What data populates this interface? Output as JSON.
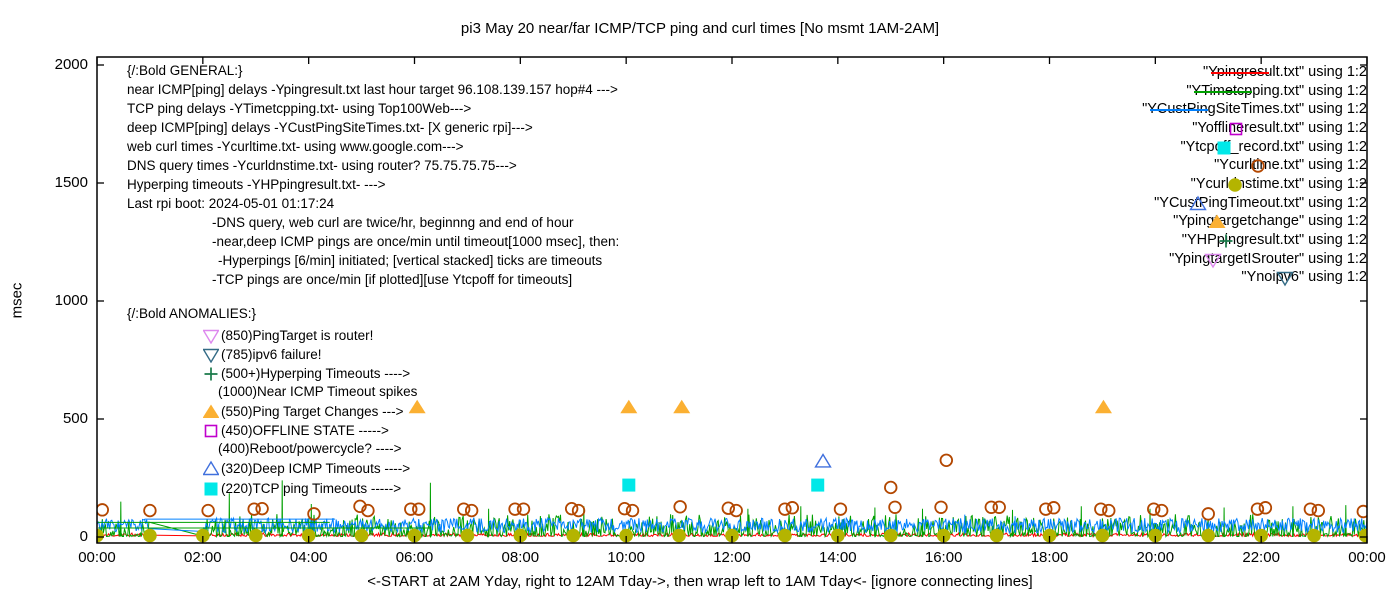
{
  "chart_data": {
    "type": "line+scatter",
    "title": "pi3 May 20  near/far ICMP/TCP ping and curl times [No msmt 1AM-2AM]",
    "xlabel": "<-START at 2AM Yday, right to 12AM Tday->, then wrap left to 1AM Tday<- [ignore connecting lines]",
    "ylabel": "msec",
    "x_axis": {
      "tick_labels": [
        "00:00",
        "02:00",
        "04:00",
        "06:00",
        "08:00",
        "10:00",
        "12:00",
        "14:00",
        "16:00",
        "18:00",
        "20:00",
        "22:00",
        "00:00"
      ],
      "hours_span": 24,
      "tick_step_hours": 2
    },
    "y_axis": {
      "tick_labels": [
        "0",
        "500",
        "1000",
        "1500",
        "2000"
      ],
      "tick_values": [
        0,
        500,
        1000,
        1500,
        2000
      ],
      "range": [
        0,
        2000
      ],
      "unit": "msec"
    },
    "no_measurement_gap_hours": [
      1,
      2
    ],
    "baseline_noise": [
      {
        "name": "Ypingresult.txt",
        "color": "#ff0000",
        "seed": 11,
        "base": 3,
        "amp": 14,
        "skew": 1.6
      },
      {
        "name": "YTimetcpping.txt",
        "color": "#00a000",
        "seed": 22,
        "base": 2,
        "amp": 95,
        "skew": 2.3,
        "spikes": [
          [
            0.45,
            150
          ],
          [
            2.5,
            185
          ],
          [
            3.5,
            240
          ],
          [
            4.05,
            140
          ],
          [
            6.3,
            230
          ],
          [
            7.4,
            120
          ],
          [
            9.2,
            130
          ],
          [
            12.3,
            120
          ],
          [
            13.3,
            130
          ],
          [
            14.7,
            125
          ],
          [
            15.6,
            120
          ],
          [
            17.3,
            115
          ],
          [
            18.6,
            130
          ],
          [
            19.9,
            120
          ],
          [
            21.3,
            125
          ],
          [
            22.6,
            130
          ],
          [
            23.6,
            135
          ]
        ]
      },
      {
        "name": "YCustPingSiteTimes.txt",
        "color": "#0080ff",
        "seed": 33,
        "base": 18,
        "amp": 62,
        "skew": 1.0,
        "spikes": [
          [
            16.4,
            95
          ],
          [
            17.35,
            88
          ]
        ]
      }
    ],
    "connecting_lines": [
      {
        "color": "#00a000",
        "from_h": 0.02,
        "to_h": 4.4,
        "msec": 62
      },
      {
        "color": "#00a000",
        "from_h": 0.02,
        "to_h": 6.3,
        "msec": 38
      },
      {
        "color": "#0080ff",
        "from_h": 0.9,
        "to_h": 4.5,
        "msec": 76
      }
    ],
    "series": [
      {
        "name": "Ycurltime.txt",
        "shape": "circle-open",
        "color": "#b34700",
        "points": [
          [
            0.1,
            115
          ],
          [
            1.0,
            112
          ],
          [
            2.1,
            112
          ],
          [
            2.97,
            118
          ],
          [
            3.12,
            120
          ],
          [
            4.1,
            98
          ],
          [
            4.97,
            130
          ],
          [
            5.12,
            112
          ],
          [
            5.93,
            118
          ],
          [
            6.08,
            118
          ],
          [
            6.93,
            118
          ],
          [
            7.08,
            112
          ],
          [
            7.9,
            118
          ],
          [
            8.06,
            118
          ],
          [
            8.97,
            120
          ],
          [
            9.1,
            112
          ],
          [
            9.97,
            120
          ],
          [
            10.12,
            112
          ],
          [
            11.02,
            128
          ],
          [
            11.93,
            122
          ],
          [
            12.08,
            112
          ],
          [
            13.0,
            118
          ],
          [
            13.14,
            124
          ],
          [
            14.05,
            118
          ],
          [
            15.0,
            210
          ],
          [
            15.08,
            126
          ],
          [
            15.95,
            126
          ],
          [
            16.05,
            325
          ],
          [
            16.9,
            126
          ],
          [
            17.05,
            126
          ],
          [
            17.93,
            118
          ],
          [
            18.08,
            124
          ],
          [
            18.97,
            118
          ],
          [
            19.12,
            112
          ],
          [
            19.97,
            118
          ],
          [
            20.12,
            112
          ],
          [
            21.0,
            98
          ],
          [
            21.93,
            118
          ],
          [
            22.08,
            124
          ],
          [
            22.93,
            118
          ],
          [
            23.08,
            112
          ],
          [
            23.93,
            108
          ]
        ]
      },
      {
        "name": "Ycurldnstime.txt",
        "shape": "circle",
        "color": "#b4b400",
        "points": [
          [
            0,
            6
          ],
          [
            1,
            6
          ],
          [
            2,
            6
          ],
          [
            3,
            6
          ],
          [
            4,
            6
          ],
          [
            5,
            6
          ],
          [
            6,
            6
          ],
          [
            7,
            6
          ],
          [
            8,
            6
          ],
          [
            9,
            6
          ],
          [
            10,
            6
          ],
          [
            11,
            6
          ],
          [
            12,
            6
          ],
          [
            13,
            6
          ],
          [
            14,
            6
          ],
          [
            15,
            6
          ],
          [
            16,
            6
          ],
          [
            17,
            6
          ],
          [
            18,
            6
          ],
          [
            19,
            6
          ],
          [
            20,
            6
          ],
          [
            21,
            6
          ],
          [
            22,
            6
          ],
          [
            23,
            6
          ],
          [
            23.97,
            6
          ]
        ]
      },
      {
        "name": "Ytcpoff_record.txt",
        "shape": "square",
        "color": "#00e8e8",
        "points": [
          [
            10.05,
            220
          ],
          [
            13.62,
            220
          ]
        ]
      },
      {
        "name": "YCustPingTimeout.txt",
        "shape": "triangle-up-open",
        "color": "#4070dd",
        "points": [
          [
            13.72,
            320
          ]
        ]
      },
      {
        "name": "Ypingtargetchange",
        "shape": "triangle-up",
        "color": "#fbb032",
        "points": [
          [
            6.05,
            550
          ],
          [
            10.05,
            550
          ],
          [
            11.05,
            550
          ],
          [
            19.02,
            550
          ]
        ]
      }
    ],
    "legend_position": "top-right"
  },
  "legend": {
    "items": [
      {
        "label": "\"Ypingresult.txt\" using 1:2",
        "shape": "line",
        "color": "#ff0000"
      },
      {
        "label": "\"YTimetcpping.txt\" using 1:2",
        "shape": "line",
        "color": "#00a000"
      },
      {
        "label": "\"YCustPingSiteTimes.txt\" using 1:2",
        "shape": "line",
        "color": "#0080ff"
      },
      {
        "label": "\"Yofflineresult.txt\" using 1:2",
        "shape": "square-open",
        "color": "#c000cc"
      },
      {
        "label": "\"Ytcpoff_record.txt\" using 1:2",
        "shape": "square",
        "color": "#00e8e8"
      },
      {
        "label": "\"Ycurltime.txt\" using 1:2",
        "shape": "circle-open",
        "color": "#b34700"
      },
      {
        "label": "\"Ycurldnstime.txt\" using 1:2",
        "shape": "circle",
        "color": "#b4b400"
      },
      {
        "label": "\"YCustPingTimeout.txt\" using 1:2",
        "shape": "triangle-up-open",
        "color": "#4070dd"
      },
      {
        "label": "\"Ypingtargetchange\" using 1:2",
        "shape": "triangle-up",
        "color": "#fbb032"
      },
      {
        "label": "\"YHPpingresult.txt\" using 1:2",
        "shape": "plus",
        "color": "#1a7a4a"
      },
      {
        "label": "\"YpingtargetISrouter\" using 1:2",
        "shape": "triangle-down-open",
        "color": "#dd88ee"
      },
      {
        "label": "\"Ynoipv6\" using 1:2",
        "shape": "triangle-down-open",
        "color": "#336b85"
      }
    ]
  },
  "annotations": {
    "general": {
      "lines": [
        {
          "text": "{/:Bold GENERAL:}"
        },
        {
          "text": "near ICMP[ping] delays -Ypingresult.txt last hour target 96.108.139.157 hop#4 --->"
        },
        {
          "text": "TCP ping delays -YTimetcpping.txt- using Top100Web--->"
        },
        {
          "text": "deep ICMP[ping] delays -YCustPingSiteTimes.txt- [X generic rpi]--->"
        },
        {
          "text": "web curl times -Ycurltime.txt- using www.google.com--->"
        },
        {
          "text": "DNS query times -Ycurldnstime.txt- using router? 75.75.75.75--->"
        },
        {
          "text": "Hyperping timeouts -YHPpingresult.txt- --->"
        },
        {
          "text": "Last rpi boot: 2024-05-01 01:17:24"
        },
        {
          "text": "-DNS query, web curl are twice/hr, beginnng and end of hour",
          "indent": 1
        },
        {
          "text": "-near,deep ICMP pings are once/min until timeout[1000 msec], then:",
          "indent": 1
        },
        {
          "text": "-Hyperpings [6/min] initiated; [vertical stacked] ticks are timeouts",
          "indent": 2
        },
        {
          "text": "-TCP pings are once/min [if plotted][use Ytcpoff for timeouts]",
          "indent": 1
        }
      ]
    },
    "anomalies": {
      "lines": [
        {
          "text": "{/:Bold ANOMALIES:}",
          "header": true
        },
        {
          "text": "(850)PingTarget is router!",
          "marker": {
            "shape": "triangle-down-open",
            "color": "#dd88ee"
          }
        },
        {
          "text": "(785)ipv6 failure!",
          "marker": {
            "shape": "triangle-down-open",
            "color": "#336b85"
          }
        },
        {
          "text": "(500+)Hyperping Timeouts ---->",
          "marker": {
            "shape": "plus",
            "color": "#1a7a4a"
          }
        },
        {
          "text": "(1000)Near ICMP Timeout spikes"
        },
        {
          "text": "(550)Ping Target Changes --->",
          "marker": {
            "shape": "triangle-up",
            "color": "#fbb032"
          }
        },
        {
          "text": "(450)OFFLINE STATE ----->",
          "marker": {
            "shape": "square-open",
            "color": "#c000cc"
          }
        },
        {
          "text": "(400)Reboot/powercycle? ---->"
        },
        {
          "text": "(320)Deep ICMP Timeouts ---->",
          "marker": {
            "shape": "triangle-up-open",
            "color": "#4070dd"
          }
        },
        {
          "text": "(220)TCP ping Timeouts ----->",
          "marker": {
            "shape": "square",
            "color": "#00e8e8"
          }
        }
      ]
    }
  }
}
